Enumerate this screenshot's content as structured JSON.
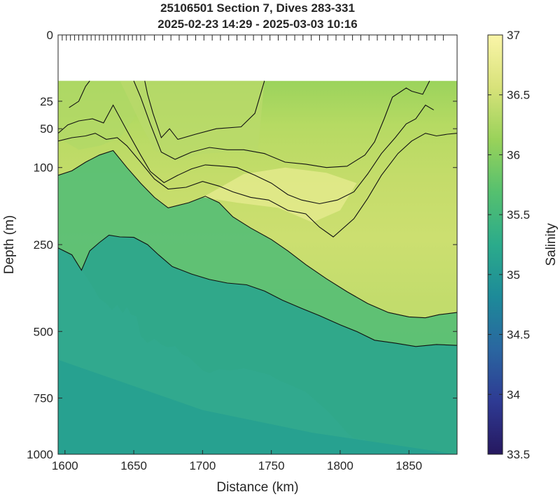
{
  "chart_data": {
    "type": "heatmap",
    "title": "25106501 Section 7, Dives 283-331",
    "subtitle": "2025-02-23 14:29 - 2025-03-03 10:16",
    "xlabel": "Distance (km)",
    "ylabel": "Depth (m)",
    "colorbar_label": "Salinity",
    "xlim": [
      1595,
      1885
    ],
    "ylim": [
      1000,
      0
    ],
    "y_scale": "square-root",
    "x_ticks": [
      1600,
      1650,
      1700,
      1750,
      1800,
      1850
    ],
    "x_tick_labels": [
      "1600",
      "1650",
      "1700",
      "1750",
      "1800",
      "1850"
    ],
    "y_ticks": [
      0,
      25,
      50,
      100,
      250,
      500,
      750,
      1000
    ],
    "y_tick_labels": [
      "0",
      "25",
      "50",
      "100",
      "250",
      "500",
      "750",
      "1000"
    ],
    "clim": [
      33.5,
      37
    ],
    "colorbar_ticks": [
      33.5,
      34,
      34.5,
      35,
      35.5,
      36,
      36.5,
      37
    ],
    "colorbar_tick_labels": [
      "33.5",
      "34",
      "34.5",
      "35",
      "35.5",
      "36",
      "36.5",
      "37"
    ],
    "colormap": [
      "#26185F",
      "#2E3A93",
      "#2A66A0",
      "#1D8A99",
      "#2BAB8B",
      "#55C06F",
      "#99D25A",
      "#D8E27A",
      "#FAF5A8"
    ],
    "contour_levels": [
      35.0,
      35.5,
      36.0,
      36.25,
      36.5,
      36.75
    ],
    "grid": false,
    "data_top_depth": 12,
    "dive_ticks_top": true,
    "contours": [
      {
        "level": 35.0,
        "points": [
          [
            1595,
            258
          ],
          [
            1605,
            275
          ],
          [
            1612,
            315
          ],
          [
            1618,
            265
          ],
          [
            1625,
            245
          ],
          [
            1632,
            228
          ],
          [
            1640,
            232
          ],
          [
            1650,
            233
          ],
          [
            1660,
            250
          ],
          [
            1668,
            275
          ],
          [
            1678,
            305
          ],
          [
            1692,
            325
          ],
          [
            1705,
            340
          ],
          [
            1718,
            350
          ],
          [
            1732,
            355
          ],
          [
            1745,
            373
          ],
          [
            1758,
            400
          ],
          [
            1772,
            425
          ],
          [
            1785,
            448
          ],
          [
            1800,
            478
          ],
          [
            1812,
            500
          ],
          [
            1825,
            530
          ],
          [
            1840,
            540
          ],
          [
            1855,
            552
          ],
          [
            1870,
            545
          ],
          [
            1885,
            548
          ]
        ]
      },
      {
        "level": 35.5,
        "points": [
          [
            1595,
            112
          ],
          [
            1605,
            105
          ],
          [
            1615,
            92
          ],
          [
            1625,
            82
          ],
          [
            1635,
            76
          ],
          [
            1645,
            100
          ],
          [
            1655,
            125
          ],
          [
            1665,
            150
          ],
          [
            1675,
            170
          ],
          [
            1690,
            160
          ],
          [
            1702,
            148
          ],
          [
            1712,
            160
          ],
          [
            1722,
            188
          ],
          [
            1735,
            212
          ],
          [
            1750,
            238
          ],
          [
            1762,
            265
          ],
          [
            1775,
            300
          ],
          [
            1790,
            338
          ],
          [
            1805,
            375
          ],
          [
            1820,
            410
          ],
          [
            1835,
            438
          ],
          [
            1850,
            452
          ],
          [
            1862,
            455
          ],
          [
            1872,
            445
          ],
          [
            1885,
            438
          ]
        ]
      },
      {
        "level": 36.0,
        "points": [
          [
            1595,
            64
          ],
          [
            1605,
            60
          ],
          [
            1615,
            58
          ],
          [
            1622,
            55
          ],
          [
            1630,
            62
          ],
          [
            1638,
            60
          ],
          [
            1645,
            70
          ],
          [
            1655,
            92
          ],
          [
            1665,
            118
          ],
          [
            1675,
            135
          ],
          [
            1688,
            132
          ],
          [
            1700,
            122
          ],
          [
            1712,
            130
          ],
          [
            1722,
            140
          ],
          [
            1735,
            150
          ],
          [
            1748,
            155
          ],
          [
            1762,
            175
          ],
          [
            1775,
            182
          ],
          [
            1785,
            210
          ],
          [
            1795,
            232
          ],
          [
            1810,
            192
          ],
          [
            1820,
            152
          ],
          [
            1830,
            112
          ],
          [
            1842,
            80
          ],
          [
            1852,
            64
          ],
          [
            1862,
            55
          ],
          [
            1870,
            58
          ],
          [
            1878,
            56
          ],
          [
            1885,
            55
          ]
        ]
      },
      {
        "level": 36.25,
        "points": [
          [
            1595,
            55
          ],
          [
            1602,
            46
          ],
          [
            1610,
            42
          ],
          [
            1620,
            40
          ],
          [
            1628,
            44
          ],
          [
            1635,
            28
          ],
          [
            1645,
            52
          ],
          [
            1655,
            82
          ],
          [
            1662,
            106
          ],
          [
            1672,
            124
          ],
          [
            1682,
            112
          ],
          [
            1692,
            102
          ],
          [
            1702,
            96
          ],
          [
            1715,
            98
          ],
          [
            1725,
            100
          ],
          [
            1738,
            112
          ],
          [
            1750,
            125
          ],
          [
            1762,
            145
          ],
          [
            1772,
            155
          ],
          [
            1785,
            162
          ],
          [
            1798,
            155
          ],
          [
            1810,
            140
          ],
          [
            1820,
            110
          ],
          [
            1830,
            80
          ],
          [
            1840,
            60
          ],
          [
            1848,
            45
          ],
          [
            1855,
            40
          ],
          [
            1862,
            28
          ],
          [
            1868,
            32
          ]
        ]
      },
      {
        "level": 36.5,
        "points": [
          [
            1603,
            30
          ],
          [
            1610,
            25
          ],
          [
            1615,
            15
          ],
          [
            1618,
            12
          ]
        ]
      },
      {
        "level": 36.5,
        "points": [
          [
            1650,
            12
          ],
          [
            1655,
            22
          ],
          [
            1662,
            45
          ],
          [
            1670,
            78
          ],
          [
            1680,
            88
          ],
          [
            1692,
            78
          ],
          [
            1705,
            72
          ],
          [
            1718,
            75
          ],
          [
            1730,
            75
          ],
          [
            1745,
            80
          ],
          [
            1760,
            92
          ],
          [
            1775,
            95
          ],
          [
            1790,
            100
          ],
          [
            1805,
            98
          ],
          [
            1818,
            82
          ],
          [
            1825,
            65
          ],
          [
            1832,
            40
          ],
          [
            1838,
            22
          ],
          [
            1848,
            16
          ],
          [
            1852,
            18
          ],
          [
            1860,
            20
          ],
          [
            1865,
            12
          ]
        ]
      },
      {
        "level": 36.75,
        "points": [
          [
            1658,
            12
          ],
          [
            1660,
            20
          ],
          [
            1664,
            35
          ],
          [
            1670,
            60
          ],
          [
            1676,
            50
          ],
          [
            1682,
            62
          ],
          [
            1695,
            56
          ],
          [
            1710,
            50
          ],
          [
            1728,
            48
          ],
          [
            1738,
            35
          ],
          [
            1745,
            12
          ]
        ]
      }
    ]
  }
}
